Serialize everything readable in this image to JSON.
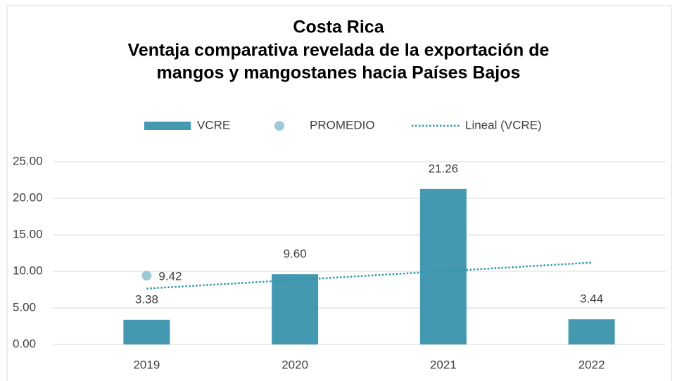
{
  "chart_data": {
    "type": "bar",
    "title": "Costa Rica",
    "subtitle": [
      "Ventaja comparativa revelada de la exportación de",
      "mangos y mangostanes hacia Países Bajos"
    ],
    "categories": [
      "2019",
      "2020",
      "2021",
      "2022"
    ],
    "series": [
      {
        "name": "VCRE",
        "type": "bar",
        "color": "#4499b0",
        "values": [
          3.38,
          9.6,
          21.26,
          3.44
        ],
        "value_labels": [
          "3.38",
          "9.60",
          "21.26",
          "3.44"
        ]
      },
      {
        "name": "PROMEDIO",
        "type": "point",
        "color": "#9ccad9",
        "values": [
          9.42,
          null,
          null,
          null
        ]
      }
    ],
    "trendline": {
      "name": "Lineal (VCRE)",
      "fit": "linear",
      "color": "#2e97a6"
    },
    "ylim": [
      0,
      25
    ],
    "yticks": [
      {
        "value": 0,
        "label": "0.00"
      },
      {
        "value": 5,
        "label": "5.00"
      },
      {
        "value": 10,
        "label": "10.00"
      },
      {
        "value": 15,
        "label": "15.00"
      },
      {
        "value": 20,
        "label": "20.00"
      },
      {
        "value": 25,
        "label": "25.00"
      }
    ],
    "grid": true,
    "legend": "top"
  }
}
